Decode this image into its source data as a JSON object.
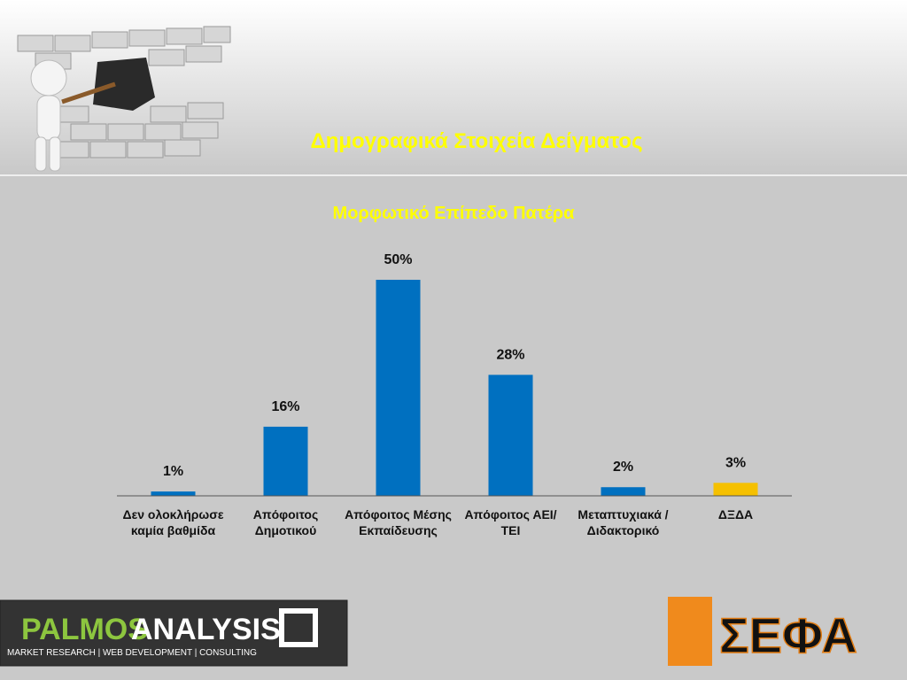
{
  "header": {
    "title": "Δημογραφικά Στοιχεία Δείγματος"
  },
  "chart_data": {
    "type": "bar",
    "title": "Μορφωτικό Επίπεδο Πατέρα",
    "categories": [
      "Δεν ολοκλήρωσε καμία βαθμίδα",
      "Απόφοιτος Δημοτικού",
      "Απόφοιτος Μέσης Εκπαίδευσης",
      "Απόφοιτος ΑΕΙ/ΤΕΙ",
      "Μεταπτυχιακά / Διδακτορικό",
      "ΔΞΔΑ"
    ],
    "values": [
      1,
      16,
      50,
      28,
      2,
      3
    ],
    "value_labels": [
      "1%",
      "16%",
      "50%",
      "28%",
      "2%",
      "3%"
    ],
    "colors": [
      "#0070c0",
      "#0070c0",
      "#0070c0",
      "#0070c0",
      "#0070c0",
      "#f5c000"
    ],
    "ylim": [
      0,
      50
    ]
  },
  "footer": {
    "left_logo": {
      "name_first": "PALMOS",
      "name_second": "ANALYSIS",
      "tagline": "MARKET RESEARCH | WEB DEVELOPMENT | CONSULTING"
    },
    "right_logo": {
      "name": "ΣΕΦΑ"
    }
  }
}
